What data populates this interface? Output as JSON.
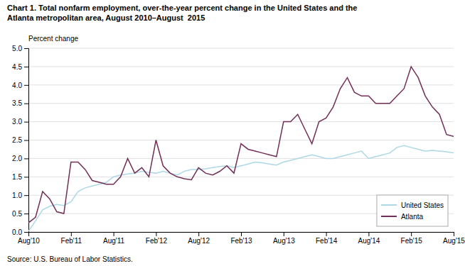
{
  "chart_data": {
    "type": "line",
    "title": "Chart 1. Total nonfarm employment, over-the-year percent change in the United States and the\nAtlanta metropolitan area, August 2010–August  2015",
    "ylabel": "Percent change",
    "source": "Source: U.S. Bureau of Labor Statistics.",
    "categories": [
      "Aug'10",
      null,
      null,
      null,
      null,
      null,
      "Feb'11",
      null,
      null,
      null,
      null,
      null,
      "Aug'11",
      null,
      null,
      null,
      null,
      null,
      "Feb'12",
      null,
      null,
      null,
      null,
      null,
      "Aug'12",
      null,
      null,
      null,
      null,
      null,
      "Feb'13",
      null,
      null,
      null,
      null,
      null,
      "Aug'13",
      null,
      null,
      null,
      null,
      null,
      "Feb'14",
      null,
      null,
      null,
      null,
      null,
      "Aug'14",
      null,
      null,
      null,
      null,
      null,
      "Feb'15",
      null,
      null,
      null,
      null,
      null,
      "Aug'15"
    ],
    "series": [
      {
        "name": "United States",
        "color": "#add8e6",
        "values": [
          0.02,
          0.3,
          0.6,
          0.7,
          0.75,
          0.72,
          0.82,
          1.1,
          1.2,
          1.25,
          1.3,
          1.35,
          1.5,
          1.55,
          1.58,
          1.6,
          1.65,
          1.62,
          1.6,
          1.65,
          1.6,
          1.55,
          1.65,
          1.7,
          1.7,
          1.72,
          1.75,
          1.78,
          1.8,
          1.75,
          1.8,
          1.85,
          1.9,
          1.88,
          1.85,
          1.82,
          1.9,
          1.95,
          2.0,
          2.05,
          2.1,
          2.05,
          2.0,
          2.0,
          2.05,
          2.1,
          2.15,
          2.2,
          2.0,
          2.05,
          2.1,
          2.15,
          2.3,
          2.35,
          2.3,
          2.25,
          2.2,
          2.22,
          2.2,
          2.18,
          2.15
        ]
      },
      {
        "name": "Atlanta",
        "color": "#722f57",
        "values": [
          0.25,
          0.4,
          1.1,
          0.9,
          0.55,
          0.5,
          1.9,
          1.9,
          1.7,
          1.4,
          1.35,
          1.3,
          1.3,
          1.5,
          2.0,
          1.6,
          1.75,
          1.5,
          2.5,
          1.8,
          1.6,
          1.5,
          1.45,
          1.42,
          1.75,
          1.6,
          1.55,
          1.65,
          1.8,
          1.6,
          2.4,
          2.25,
          2.2,
          2.15,
          2.1,
          2.05,
          3.0,
          3.0,
          3.2,
          2.8,
          2.4,
          3.0,
          3.1,
          3.4,
          3.9,
          4.2,
          3.8,
          3.7,
          3.7,
          3.5,
          3.5,
          3.5,
          3.7,
          3.9,
          4.5,
          4.2,
          3.7,
          3.4,
          3.2,
          2.65,
          2.6
        ]
      }
    ],
    "ylim": [
      0.0,
      5.0
    ],
    "yticks": [
      {
        "value": 0.0,
        "label": "0.0"
      },
      0.5,
      {
        "value": 1.0,
        "label": "1.0"
      },
      1.5,
      {
        "value": 2.0,
        "label": "2.0"
      },
      2.5,
      {
        "value": 3.0,
        "label": "3.0"
      },
      3.5,
      {
        "value": 4.0,
        "label": "4.0"
      },
      4.5,
      {
        "value": 5.0,
        "label": "5.0"
      }
    ],
    "grid": true,
    "legend": "lower right"
  }
}
